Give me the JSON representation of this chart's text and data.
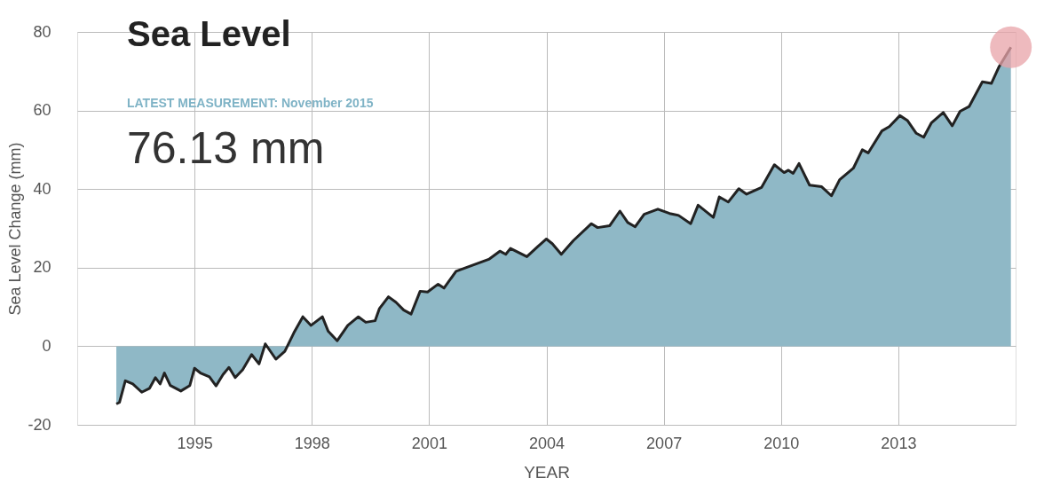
{
  "chart_data": {
    "type": "area",
    "title": "Sea Level",
    "subtitle": "LATEST MEASUREMENT: November 2015",
    "annotations": [
      "76.13 mm"
    ],
    "xlabel": "YEAR",
    "ylabel": "Sea Level Change (mm)",
    "xlim": [
      1992,
      2016
    ],
    "xticks": [
      1995,
      1998,
      2001,
      2004,
      2007,
      2010,
      2013
    ],
    "ylim": [
      -20,
      80
    ],
    "yticks": [
      -20,
      0,
      20,
      40,
      60,
      80
    ],
    "grid": true,
    "series": [
      {
        "color": "#8fb8c6",
        "x": [
          1993.0,
          1993.08,
          1993.23,
          1993.42,
          1993.65,
          1993.85,
          1994.0,
          1994.12,
          1994.23,
          1994.38,
          1994.65,
          1994.88,
          1995.0,
          1995.15,
          1995.38,
          1995.55,
          1995.73,
          1995.88,
          1996.04,
          1996.23,
          1996.46,
          1996.65,
          1996.81,
          1997.08,
          1997.31,
          1997.54,
          1997.77,
          1997.98,
          1998.27,
          1998.42,
          1998.65,
          1998.92,
          1999.19,
          1999.38,
          1999.62,
          1999.73,
          1999.96,
          2000.15,
          2000.35,
          2000.54,
          2000.77,
          2000.96,
          2001.23,
          2001.38,
          2001.69,
          2002.54,
          2002.81,
          2002.96,
          2003.08,
          2003.5,
          2003.77,
          2004.0,
          2004.15,
          2004.38,
          2004.69,
          2005.15,
          2005.31,
          2005.62,
          2005.88,
          2006.08,
          2006.27,
          2006.5,
          2006.85,
          2007.15,
          2007.38,
          2007.69,
          2007.88,
          2008.27,
          2008.42,
          2008.65,
          2008.92,
          2009.12,
          2009.5,
          2009.83,
          2010.08,
          2010.19,
          2010.31,
          2010.46,
          2010.73,
          2011.04,
          2011.29,
          2011.5,
          2011.85,
          2012.08,
          2012.23,
          2012.58,
          2012.77,
          2013.04,
          2013.23,
          2013.46,
          2013.65,
          2013.85,
          2014.15,
          2014.38,
          2014.58,
          2014.81,
          2015.15,
          2015.38,
          2015.58,
          2015.88
        ],
        "values": [
          -14.7,
          -14.3,
          -8.8,
          -9.6,
          -11.7,
          -10.7,
          -8.0,
          -9.6,
          -6.8,
          -10.0,
          -11.4,
          -10.0,
          -5.6,
          -6.8,
          -7.8,
          -10.1,
          -7.2,
          -5.4,
          -8.0,
          -6.0,
          -2.1,
          -4.5,
          0.6,
          -3.3,
          -1.3,
          3.4,
          7.5,
          5.3,
          7.5,
          3.8,
          1.4,
          5.3,
          7.5,
          6.1,
          6.5,
          9.6,
          12.6,
          11.2,
          9.2,
          8.2,
          14.0,
          13.8,
          15.8,
          14.8,
          19.1,
          22.2,
          24.2,
          23.4,
          24.9,
          22.8,
          25.3,
          27.3,
          26.1,
          23.4,
          26.9,
          31.2,
          30.2,
          30.7,
          34.4,
          31.5,
          30.4,
          33.6,
          34.9,
          33.8,
          33.3,
          31.2,
          35.9,
          32.8,
          38.0,
          36.7,
          40.1,
          38.7,
          40.4,
          46.2,
          44.2,
          44.8,
          44.0,
          46.5,
          41.0,
          40.6,
          38.3,
          42.4,
          45.3,
          50.0,
          49.2,
          54.8,
          55.9,
          58.7,
          57.5,
          54.2,
          53.2,
          56.9,
          59.5,
          56.1,
          59.8,
          61.0,
          67.3,
          66.9,
          71.2,
          76.1
        ]
      },
      {
        "type": "scatter",
        "color": "#e8a3a8",
        "x": [
          2015.88
        ],
        "values": [
          76.1
        ]
      }
    ]
  }
}
